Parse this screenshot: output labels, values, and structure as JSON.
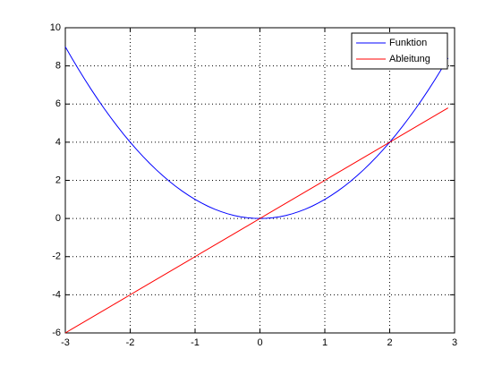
{
  "chart_data": {
    "type": "line",
    "x": [
      -3,
      -2.9,
      -2.8,
      -2.7,
      -2.6,
      -2.5,
      -2.4,
      -2.3,
      -2.2,
      -2.1,
      -2,
      -1.9,
      -1.8,
      -1.7,
      -1.6,
      -1.5,
      -1.4,
      -1.3,
      -1.2,
      -1.1,
      -1,
      -0.9,
      -0.8,
      -0.7,
      -0.6,
      -0.5,
      -0.4,
      -0.3,
      -0.2,
      -0.1,
      0,
      0.1,
      0.2,
      0.3,
      0.4,
      0.5,
      0.6,
      0.7,
      0.8,
      0.9,
      1,
      1.1,
      1.2,
      1.3,
      1.4,
      1.5,
      1.6,
      1.7,
      1.8,
      1.9,
      2,
      2.1,
      2.2,
      2.3,
      2.4,
      2.5,
      2.6,
      2.7,
      2.8,
      2.9
    ],
    "series": [
      {
        "name": "Funktion",
        "color": "#0000ff",
        "values": [
          9,
          8.41,
          7.84,
          7.29,
          6.76,
          6.25,
          5.76,
          5.29,
          4.84,
          4.41,
          4,
          3.61,
          3.24,
          2.89,
          2.56,
          2.25,
          1.96,
          1.69,
          1.44,
          1.21,
          1,
          0.81,
          0.64,
          0.49,
          0.36,
          0.25,
          0.16,
          0.09,
          0.04,
          0.01,
          0,
          0.01,
          0.04,
          0.09,
          0.16,
          0.25,
          0.36,
          0.49,
          0.64,
          0.81,
          1,
          1.21,
          1.44,
          1.69,
          1.96,
          2.25,
          2.56,
          2.89,
          3.24,
          3.61,
          4,
          4.41,
          4.84,
          5.29,
          5.76,
          6.25,
          6.76,
          7.29,
          7.84,
          8.41
        ]
      },
      {
        "name": "Ableitung",
        "color": "#ff0000",
        "values": [
          -6,
          -5.8,
          -5.6,
          -5.4,
          -5.2,
          -5,
          -4.8,
          -4.6,
          -4.4,
          -4.2,
          -4,
          -3.8,
          -3.6,
          -3.4,
          -3.2,
          -3,
          -2.8,
          -2.6,
          -2.4,
          -2.2,
          -2,
          -1.8,
          -1.6,
          -1.4,
          -1.2,
          -1,
          -0.8,
          -0.6,
          -0.4,
          -0.2,
          0,
          0.2,
          0.4,
          0.6,
          0.8,
          1,
          1.2,
          1.4,
          1.6,
          1.8,
          2,
          2.2,
          2.4,
          2.6,
          2.8,
          3,
          3.2,
          3.4,
          3.6,
          3.8,
          4,
          4.2,
          4.4,
          4.6,
          4.8,
          5,
          5.2,
          5.4,
          5.6,
          5.8
        ]
      }
    ],
    "xlim": [
      -3,
      3
    ],
    "xticks": [
      -3,
      -2,
      -1,
      0,
      1,
      2,
      3
    ],
    "ylim": [
      -6,
      10
    ],
    "yticks": [
      -6,
      -4,
      -2,
      0,
      2,
      4,
      6,
      8,
      10
    ],
    "grid": true,
    "legend": "northeast"
  }
}
